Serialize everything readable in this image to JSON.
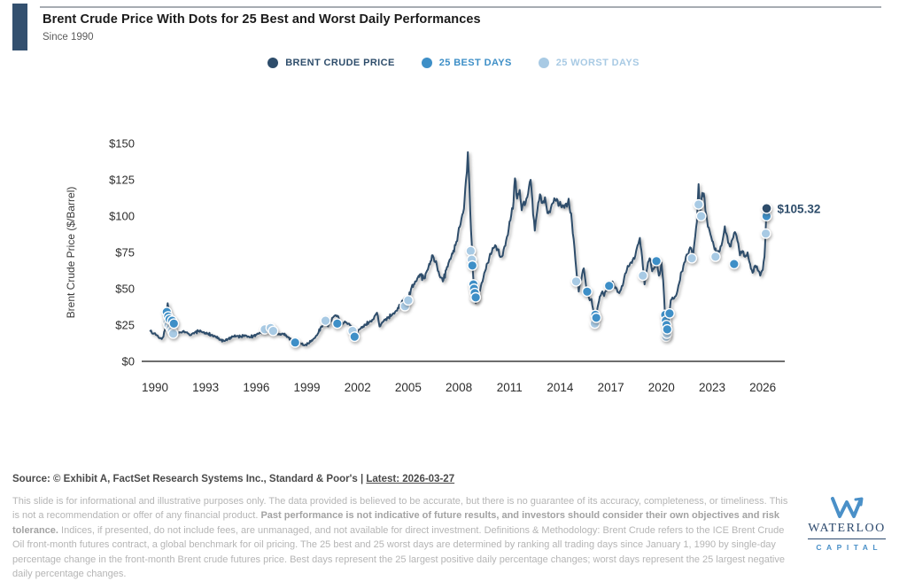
{
  "header": {
    "title": "Brent Crude Price With Dots for 25 Best and Worst Daily Performances",
    "subtitle": "Since 1990"
  },
  "colors": {
    "brent_line": "#2E4D6B",
    "best_days": "#3E8FC7",
    "worst_days": "#A8CAE4",
    "accent_bar": "#33506F"
  },
  "legend": {
    "items": [
      {
        "label": "BRENT CRUDE PRICE",
        "color": "#2E4D6B",
        "swatch": "circle"
      },
      {
        "label": "25 BEST DAYS",
        "color": "#3E8FC7",
        "swatch": "circle"
      },
      {
        "label": "25 WORST DAYS",
        "color": "#A8CAE4",
        "swatch": "circle"
      }
    ]
  },
  "chart_data": {
    "type": "line",
    "title": "Brent Crude Price With Dots for 25 Best and Worst Daily Performances",
    "xlabel": "",
    "ylabel": "Brent Crude Price ($/Barrel)",
    "xlim": [
      1989.6,
      2027.3
    ],
    "ylim": [
      0,
      150
    ],
    "grid": false,
    "legend_position": "top-center",
    "x_ticks": [
      1990,
      1993,
      1996,
      1999,
      2002,
      2005,
      2008,
      2011,
      2014,
      2017,
      2020,
      2023,
      2026
    ],
    "y_ticks": [
      0,
      25,
      50,
      75,
      100,
      125,
      150
    ],
    "y_tick_prefix": "$",
    "end_label": "$105.32",
    "latest_value": 105.32,
    "series": [
      {
        "name": "Brent Crude Price",
        "type": "line",
        "color": "#2E4D6B",
        "points": [
          [
            1989.72,
            21
          ],
          [
            1989.9,
            19
          ],
          [
            1990.1,
            18
          ],
          [
            1990.3,
            16
          ],
          [
            1990.5,
            17
          ],
          [
            1990.62,
            24
          ],
          [
            1990.75,
            40
          ],
          [
            1990.85,
            32
          ],
          [
            1990.95,
            27
          ],
          [
            1991.05,
            22
          ],
          [
            1991.15,
            19
          ],
          [
            1991.3,
            19.5
          ],
          [
            1991.5,
            20
          ],
          [
            1991.7,
            21
          ],
          [
            1991.9,
            20
          ],
          [
            1992.1,
            18
          ],
          [
            1992.35,
            20
          ],
          [
            1992.6,
            21
          ],
          [
            1992.85,
            20
          ],
          [
            1993.1,
            19
          ],
          [
            1993.35,
            18
          ],
          [
            1993.6,
            17
          ],
          [
            1993.85,
            15
          ],
          [
            1994.1,
            14
          ],
          [
            1994.35,
            15.5
          ],
          [
            1994.6,
            17
          ],
          [
            1994.85,
            17.5
          ],
          [
            1995.1,
            17
          ],
          [
            1995.35,
            18
          ],
          [
            1995.6,
            16.5
          ],
          [
            1995.85,
            17.5
          ],
          [
            1996.1,
            19
          ],
          [
            1996.35,
            20
          ],
          [
            1996.6,
            21.5
          ],
          [
            1996.9,
            24
          ],
          [
            1997.1,
            21
          ],
          [
            1997.35,
            18.5
          ],
          [
            1997.6,
            19
          ],
          [
            1997.85,
            17
          ],
          [
            1998.1,
            14.5
          ],
          [
            1998.35,
            13
          ],
          [
            1998.6,
            12.5
          ],
          [
            1998.85,
            11
          ],
          [
            1999.1,
            12.5
          ],
          [
            1999.35,
            15
          ],
          [
            1999.6,
            18
          ],
          [
            1999.85,
            24
          ],
          [
            2000.05,
            27
          ],
          [
            2000.25,
            24
          ],
          [
            2000.45,
            28
          ],
          [
            2000.65,
            31.5
          ],
          [
            2000.85,
            31
          ],
          [
            2001.05,
            26
          ],
          [
            2001.25,
            27.5
          ],
          [
            2001.45,
            26
          ],
          [
            2001.65,
            24
          ],
          [
            2001.8,
            18
          ],
          [
            2001.95,
            20
          ],
          [
            2002.2,
            23
          ],
          [
            2002.45,
            25
          ],
          [
            2002.7,
            27
          ],
          [
            2002.95,
            29
          ],
          [
            2003.15,
            33.5
          ],
          [
            2003.3,
            24
          ],
          [
            2003.55,
            28
          ],
          [
            2003.8,
            30
          ],
          [
            2004.05,
            32
          ],
          [
            2004.3,
            35
          ],
          [
            2004.55,
            39
          ],
          [
            2004.8,
            44
          ],
          [
            2004.95,
            40
          ],
          [
            2005.2,
            51
          ],
          [
            2005.45,
            55
          ],
          [
            2005.7,
            60
          ],
          [
            2005.95,
            57
          ],
          [
            2006.2,
            65
          ],
          [
            2006.45,
            73
          ],
          [
            2006.65,
            69
          ],
          [
            2006.85,
            59
          ],
          [
            2007.05,
            55
          ],
          [
            2007.3,
            65
          ],
          [
            2007.55,
            72
          ],
          [
            2007.8,
            80
          ],
          [
            2008.0,
            92
          ],
          [
            2008.15,
            98
          ],
          [
            2008.3,
            105
          ],
          [
            2008.42,
            125
          ],
          [
            2008.53,
            144
          ],
          [
            2008.62,
            122
          ],
          [
            2008.72,
            90
          ],
          [
            2008.85,
            58
          ],
          [
            2009.0,
            40
          ],
          [
            2009.15,
            47
          ],
          [
            2009.35,
            54
          ],
          [
            2009.55,
            62
          ],
          [
            2009.75,
            68
          ],
          [
            2009.95,
            75
          ],
          [
            2010.15,
            80
          ],
          [
            2010.35,
            77
          ],
          [
            2010.5,
            72
          ],
          [
            2010.7,
            79
          ],
          [
            2010.9,
            87
          ],
          [
            2011.05,
            97
          ],
          [
            2011.2,
            105
          ],
          [
            2011.32,
            126
          ],
          [
            2011.45,
            112
          ],
          [
            2011.6,
            118
          ],
          [
            2011.72,
            104
          ],
          [
            2011.85,
            110
          ],
          [
            2012.0,
            112
          ],
          [
            2012.15,
            120
          ],
          [
            2012.25,
            125
          ],
          [
            2012.4,
            101
          ],
          [
            2012.5,
            90
          ],
          [
            2012.65,
            104
          ],
          [
            2012.8,
            115
          ],
          [
            2012.95,
            109
          ],
          [
            2013.1,
            113
          ],
          [
            2013.3,
            102
          ],
          [
            2013.5,
            108
          ],
          [
            2013.7,
            111
          ],
          [
            2013.9,
            107
          ],
          [
            2014.1,
            106
          ],
          [
            2014.3,
            108
          ],
          [
            2014.5,
            112
          ],
          [
            2014.65,
            102
          ],
          [
            2014.8,
            84
          ],
          [
            2015.0,
            57
          ],
          [
            2015.1,
            48
          ],
          [
            2015.25,
            56
          ],
          [
            2015.4,
            64
          ],
          [
            2015.55,
            50
          ],
          [
            2015.7,
            44
          ],
          [
            2015.85,
            43
          ],
          [
            2016.0,
            34
          ],
          [
            2016.08,
            28
          ],
          [
            2016.25,
            39
          ],
          [
            2016.45,
            47
          ],
          [
            2016.6,
            45
          ],
          [
            2016.8,
            50
          ],
          [
            2016.95,
            54
          ],
          [
            2017.1,
            55
          ],
          [
            2017.3,
            51
          ],
          [
            2017.5,
            47
          ],
          [
            2017.7,
            52
          ],
          [
            2017.9,
            61
          ],
          [
            2018.1,
            66
          ],
          [
            2018.3,
            70
          ],
          [
            2018.5,
            76
          ],
          [
            2018.72,
            85
          ],
          [
            2018.85,
            72
          ],
          [
            2019.0,
            53
          ],
          [
            2019.15,
            64
          ],
          [
            2019.3,
            71
          ],
          [
            2019.45,
            62
          ],
          [
            2019.6,
            65
          ],
          [
            2019.72,
            67
          ],
          [
            2019.85,
            59
          ],
          [
            2020.0,
            68
          ],
          [
            2020.1,
            56
          ],
          [
            2020.2,
            34
          ],
          [
            2020.3,
            19
          ],
          [
            2020.42,
            30
          ],
          [
            2020.55,
            42
          ],
          [
            2020.7,
            43
          ],
          [
            2020.85,
            45
          ],
          [
            2021.0,
            52
          ],
          [
            2021.15,
            61
          ],
          [
            2021.3,
            66
          ],
          [
            2021.45,
            72
          ],
          [
            2021.6,
            74
          ],
          [
            2021.75,
            78
          ],
          [
            2021.85,
            70
          ],
          [
            2022.0,
            86
          ],
          [
            2022.1,
            96
          ],
          [
            2022.2,
            122
          ],
          [
            2022.3,
            103
          ],
          [
            2022.42,
            116
          ],
          [
            2022.55,
            112
          ],
          [
            2022.7,
            97
          ],
          [
            2022.85,
            90
          ],
          [
            2023.0,
            83
          ],
          [
            2023.15,
            77
          ],
          [
            2023.3,
            73
          ],
          [
            2023.45,
            76
          ],
          [
            2023.6,
            82
          ],
          [
            2023.75,
            93
          ],
          [
            2023.9,
            86
          ],
          [
            2024.05,
            79
          ],
          [
            2024.2,
            84
          ],
          [
            2024.35,
            89
          ],
          [
            2024.5,
            83
          ],
          [
            2024.65,
            73
          ],
          [
            2024.8,
            76
          ],
          [
            2024.95,
            72
          ],
          [
            2025.1,
            75
          ],
          [
            2025.25,
            67
          ],
          [
            2025.4,
            61
          ],
          [
            2025.55,
            66
          ],
          [
            2025.7,
            63
          ],
          [
            2025.85,
            59
          ],
          [
            2026.0,
            63
          ],
          [
            2026.1,
            72
          ],
          [
            2026.17,
            90
          ],
          [
            2026.23,
            105.32
          ]
        ]
      },
      {
        "name": "25 Best Days",
        "type": "scatter",
        "color": "#3E8FC7",
        "points": [
          [
            1990.7,
            34
          ],
          [
            1990.78,
            31
          ],
          [
            1990.86,
            29
          ],
          [
            1991.02,
            28
          ],
          [
            1991.12,
            26
          ],
          [
            1998.3,
            13
          ],
          [
            2000.8,
            26
          ],
          [
            2001.82,
            17
          ],
          [
            2008.8,
            66
          ],
          [
            2008.86,
            53
          ],
          [
            2008.9,
            50
          ],
          [
            2008.94,
            47
          ],
          [
            2009.0,
            44
          ],
          [
            2015.6,
            48
          ],
          [
            2016.08,
            32
          ],
          [
            2016.14,
            30
          ],
          [
            2016.9,
            52
          ],
          [
            2019.7,
            69
          ],
          [
            2020.22,
            32
          ],
          [
            2020.26,
            28
          ],
          [
            2020.3,
            25
          ],
          [
            2020.34,
            22
          ],
          [
            2020.48,
            33
          ],
          [
            2024.3,
            67
          ],
          [
            2026.22,
            100
          ]
        ]
      },
      {
        "name": "25 Worst Days",
        "type": "scatter",
        "color": "#A8CAE4",
        "points": [
          [
            1990.74,
            27
          ],
          [
            1990.8,
            25
          ],
          [
            1990.92,
            23
          ],
          [
            1991.0,
            21
          ],
          [
            1991.08,
            19
          ],
          [
            1996.5,
            22
          ],
          [
            1996.85,
            23
          ],
          [
            1997.0,
            21
          ],
          [
            2000.1,
            28
          ],
          [
            2001.7,
            21
          ],
          [
            2004.8,
            38
          ],
          [
            2005.0,
            42
          ],
          [
            2008.7,
            76
          ],
          [
            2008.76,
            70
          ],
          [
            2008.92,
            44
          ],
          [
            2014.95,
            55
          ],
          [
            2016.05,
            26
          ],
          [
            2018.9,
            59
          ],
          [
            2020.28,
            17
          ],
          [
            2020.32,
            19
          ],
          [
            2021.8,
            71
          ],
          [
            2022.2,
            108
          ],
          [
            2022.35,
            100
          ],
          [
            2023.2,
            72
          ],
          [
            2026.18,
            88
          ]
        ]
      }
    ]
  },
  "source": {
    "prefix": "Source: © Exhibit A, FactSet Research Systems Inc., Standard & Poor's | ",
    "latest": "Latest: 2026-03-27"
  },
  "disclaimer": {
    "pre_bold": "This slide is for informational and illustrative purposes only. The data provided is believed to be accurate, but there is no guarantee of its accuracy, completeness, or timeliness. This is not a recommendation or offer of any financial product. ",
    "bold": "Past performance is not indicative of future results, and investors should consider their own objectives and risk tolerance.",
    "post_bold": " Indices, if presented, do not include fees, are unmanaged, and not available for direct investment. Definitions & Methodology: Brent Crude refers to the ICE Brent Crude Oil front-month futures contract, a global benchmark for oil pricing. The 25 best and 25 worst days are determined by ranking all trading days since January 1, 1990 by single-day percentage change in the front-month Brent crude futures price. Best days represent the 25 largest positive daily percentage changes; worst days represent the 25 largest negative daily percentage changes."
  },
  "logo": {
    "icon": "waterloo-w-icon",
    "name": "WATERLOO",
    "sub": "CAPITAL"
  }
}
